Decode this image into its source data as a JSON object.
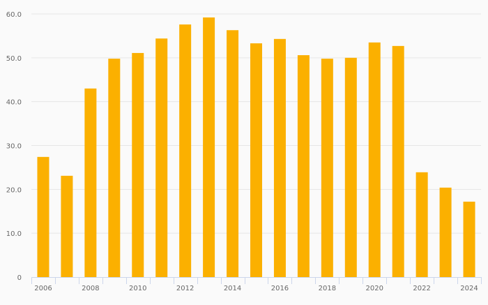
{
  "chart_data": {
    "type": "bar",
    "title": "",
    "xlabel": "",
    "ylabel": "",
    "categories": [
      "2006",
      "2007",
      "2008",
      "2009",
      "2010",
      "2011",
      "2012",
      "2013",
      "2014",
      "2015",
      "2016",
      "2017",
      "2018",
      "2019",
      "2020",
      "2021",
      "2022",
      "2023",
      "2024"
    ],
    "values": [
      27.4,
      23.1,
      43.0,
      49.8,
      51.1,
      54.4,
      57.6,
      59.2,
      56.3,
      53.3,
      54.3,
      50.6,
      49.8,
      50.0,
      53.5,
      52.7,
      23.9,
      20.4,
      17.2
    ],
    "ylim": [
      0,
      60
    ],
    "yticks": [
      "0",
      "10.0",
      "20.0",
      "30.0",
      "40.0",
      "50.0",
      "60.0"
    ],
    "xtick_labels": [
      "2006",
      "",
      "2008",
      "",
      "2010",
      "",
      "2012",
      "",
      "2014",
      "",
      "2016",
      "",
      "2018",
      "",
      "2020",
      "",
      "2022",
      "",
      "2024"
    ],
    "grid": true,
    "legend": "none",
    "bar_color": "#fbb000"
  }
}
